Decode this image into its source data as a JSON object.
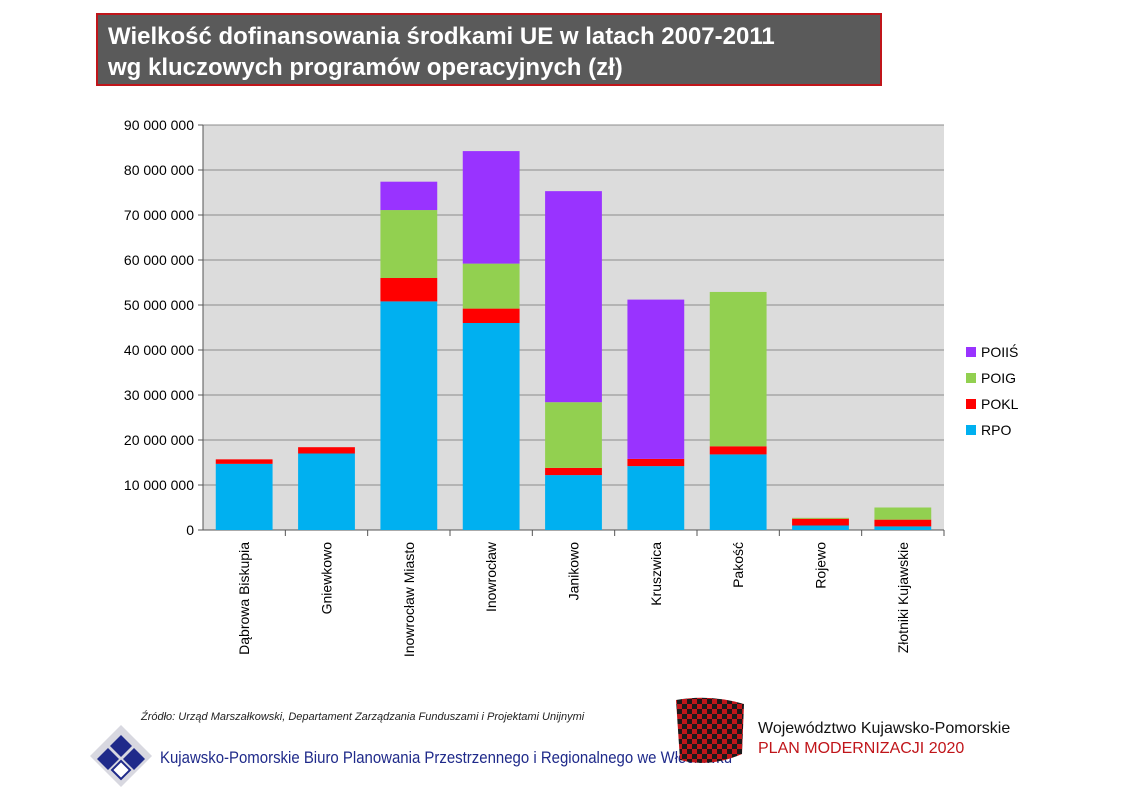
{
  "title": {
    "line1": "Wielkość dofinansowania środkami UE w latach 2007-2011",
    "line2": "wg kluczowych programów operacyjnych (zł)"
  },
  "chart_data": {
    "type": "bar",
    "stacked": true,
    "categories": [
      "Dąbrowa Biskupia",
      "Gniewkowo",
      "Inowrocław Miasto",
      "Inowrocław",
      "Janikowo",
      "Kruszwica",
      "Pakość",
      "Rojewo",
      "Złotniki Kujawskie"
    ],
    "series": [
      {
        "name": "RPO",
        "color": "#00b0f0",
        "values": [
          14700000,
          17000000,
          50800000,
          46000000,
          12200000,
          14200000,
          16800000,
          1000000,
          800000
        ]
      },
      {
        "name": "POKL",
        "color": "#ff0000",
        "values": [
          1000000,
          1400000,
          5200000,
          3200000,
          1600000,
          1600000,
          1800000,
          1500000,
          1500000
        ]
      },
      {
        "name": "POIG",
        "color": "#92d050",
        "values": [
          0,
          0,
          15100000,
          10000000,
          14600000,
          0,
          34300000,
          200000,
          2700000
        ]
      },
      {
        "name": "POIIŚ",
        "color": "#9933ff",
        "values": [
          0,
          0,
          6300000,
          25000000,
          46900000,
          35400000,
          0,
          0,
          0
        ]
      }
    ],
    "legend_order": [
      "POIIŚ",
      "POIG",
      "POKL",
      "RPO"
    ],
    "ylim": [
      0,
      90000000
    ],
    "yticks": [
      "0",
      "10 000 000",
      "20 000 000",
      "30 000 000",
      "40 000 000",
      "50 000 000",
      "60 000 000",
      "70 000 000",
      "80 000 000",
      "90 000 000"
    ],
    "grid": true,
    "legend_position": "right"
  },
  "source_note": "Źródło: Urząd Marszałkowski, Departament Zarządzania Funduszami i Projektami Unijnymi",
  "office_name": "Kujawsko-Pomorskie Biuro Planowania  Przestrzennego i Regionalnego we Włocławku",
  "region_name": "Województwo Kujawsko-Pomorskie",
  "plan_name": "PLAN MODERNIZACJI 2020"
}
